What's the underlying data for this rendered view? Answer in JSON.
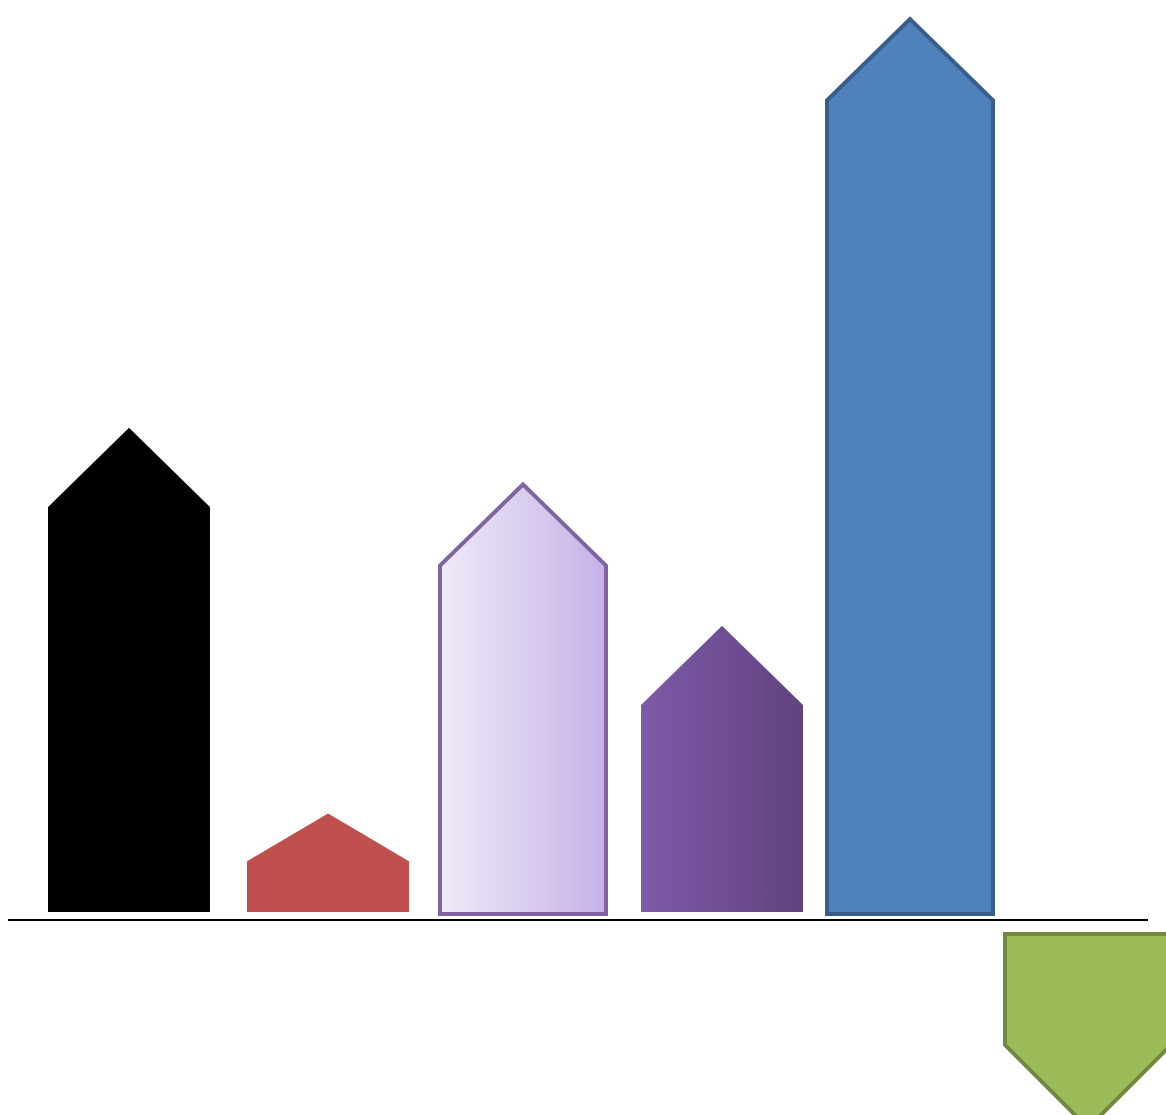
{
  "chart_data": {
    "type": "bar",
    "title": "",
    "xlabel": "",
    "ylabel": "",
    "grid": false,
    "legend": "none",
    "categories": [
      "",
      "",
      "",
      "",
      "",
      ""
    ],
    "values": [
      5.0,
      1.1,
      4.4,
      3.0,
      9.1,
      -2.1
    ],
    "ylim": [
      -2.2,
      9.2
    ],
    "bar_styles": [
      {
        "fill_start": "#000000",
        "fill_end": "#000000",
        "stroke": "#ffffff"
      },
      {
        "fill_start": "#c0504d",
        "fill_end": "#c0504d",
        "stroke": "#ffffff"
      },
      {
        "fill_start": "#efe9f8",
        "fill_end": "#c5b2e6",
        "stroke": "#8064a2"
      },
      {
        "fill_start": "#7f5aa9",
        "fill_end": "#5f437e",
        "stroke": "#ffffff"
      },
      {
        "fill_start": "#4f81bd",
        "fill_end": "#4f81bd",
        "stroke": "#385d8a"
      },
      {
        "fill_start": "#9bbb59",
        "fill_end": "#9bbb59",
        "stroke": "#71893f"
      }
    ],
    "axis_color": "#000000"
  }
}
